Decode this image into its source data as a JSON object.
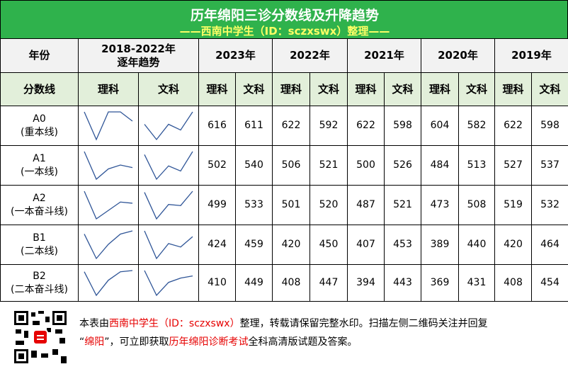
{
  "title": "历年绵阳三诊分数线及升降趋势",
  "subtitle": "——西南中学生（ID：sczxswx）整理——",
  "header": {
    "year_label": "年份",
    "trend_label": [
      "2018-2022年",
      "逐年趋势"
    ],
    "years": [
      "2023年",
      "2022年",
      "2021年",
      "2020年",
      "2019年"
    ]
  },
  "subheader": {
    "label": "分数线",
    "sci": "理科",
    "arts": "文科"
  },
  "rows": [
    {
      "name": "A0",
      "sub": "(重本线)",
      "values": [
        616,
        611,
        622,
        592,
        622,
        598,
        604,
        582,
        622,
        598
      ]
    },
    {
      "name": "A1",
      "sub": "(一本线)",
      "values": [
        502,
        540,
        506,
        521,
        500,
        526,
        484,
        513,
        527,
        537
      ]
    },
    {
      "name": "A2",
      "sub": "(一本奋斗线)",
      "values": [
        499,
        533,
        501,
        520,
        487,
        521,
        473,
        508,
        519,
        532
      ]
    },
    {
      "name": "B1",
      "sub": "(二本线)",
      "values": [
        424,
        459,
        420,
        450,
        407,
        453,
        389,
        440,
        420,
        464
      ]
    },
    {
      "name": "B2",
      "sub": "(二本奋斗线)",
      "values": [
        410,
        449,
        408,
        447,
        394,
        443,
        369,
        431,
        408,
        454
      ]
    }
  ],
  "footer": [
    [
      {
        "text": "本表由",
        "highlight": false
      },
      {
        "text": "西南中学生（ID：sczxswx）",
        "highlight": true
      },
      {
        "text": "整理，转载请保留完整水印。扫描左侧二维码关注并回复",
        "highlight": false
      }
    ],
    [
      {
        "text": "“",
        "highlight": false
      },
      {
        "text": "绵阳",
        "highlight": true
      },
      {
        "text": "”，可立即获取",
        "highlight": false
      },
      {
        "text": "历年绵阳诊断考试",
        "highlight": true
      },
      {
        "text": "全科高清版试题及答案。",
        "highlight": false
      }
    ]
  ]
}
